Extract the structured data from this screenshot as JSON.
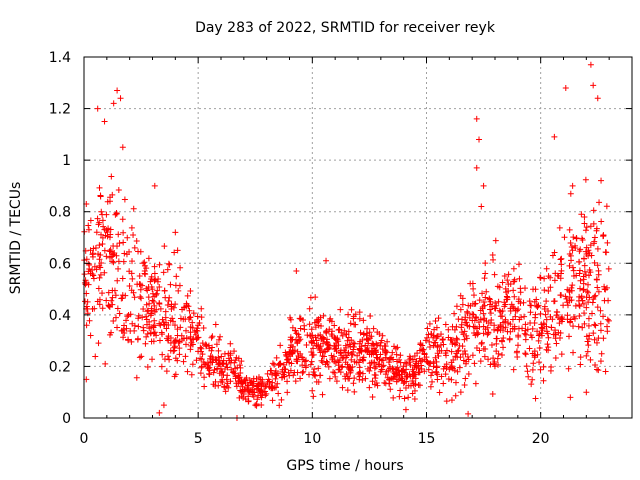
{
  "chart_data": {
    "type": "scatter",
    "title": "Day 283 of 2022, SRMTID for receiver reyk",
    "xlabel": "GPS time / hours",
    "ylabel": "SRMTID / TECUs",
    "xlim": [
      0,
      24
    ],
    "ylim": [
      0,
      1.4
    ],
    "xticks": [
      0,
      5,
      10,
      15,
      20
    ],
    "yticks": [
      0,
      0.2,
      0.4,
      0.6,
      0.8,
      1,
      1.2,
      1.4
    ],
    "xtick_labels": [
      "0",
      "5",
      "10",
      "15",
      "20"
    ],
    "ytick_labels": [
      "0",
      "0.2",
      "0.4",
      "0.6",
      "0.8",
      "1",
      "1.2",
      "1.4"
    ],
    "grid": true,
    "marker": "+",
    "color": "#ff0000",
    "series": [
      {
        "name": "SRMTID",
        "profile": {
          "x": [
            0,
            0.5,
            1,
            1.5,
            2,
            2.5,
            3,
            3.5,
            4,
            4.5,
            5,
            5.5,
            6,
            6.5,
            7,
            7.5,
            8,
            8.5,
            9,
            9.5,
            10,
            10.5,
            11,
            11.5,
            12,
            12.5,
            13,
            13.5,
            14,
            14.5,
            15,
            15.5,
            16,
            16.5,
            17,
            17.5,
            18,
            18.5,
            19,
            19.5,
            20,
            20.5,
            21,
            21.5,
            22,
            22.5,
            23
          ],
          "median": [
            0.55,
            0.58,
            0.6,
            0.58,
            0.5,
            0.45,
            0.42,
            0.38,
            0.4,
            0.35,
            0.3,
            0.22,
            0.2,
            0.18,
            0.12,
            0.1,
            0.13,
            0.17,
            0.25,
            0.27,
            0.28,
            0.27,
            0.26,
            0.24,
            0.25,
            0.26,
            0.22,
            0.18,
            0.16,
            0.18,
            0.25,
            0.27,
            0.22,
            0.28,
            0.35,
            0.38,
            0.4,
            0.42,
            0.42,
            0.35,
            0.32,
            0.4,
            0.5,
            0.55,
            0.55,
            0.5,
            0.45
          ],
          "spread": [
            0.2,
            0.2,
            0.22,
            0.25,
            0.2,
            0.18,
            0.15,
            0.15,
            0.15,
            0.12,
            0.1,
            0.08,
            0.07,
            0.06,
            0.04,
            0.04,
            0.05,
            0.07,
            0.1,
            0.1,
            0.12,
            0.1,
            0.1,
            0.1,
            0.1,
            0.1,
            0.08,
            0.07,
            0.06,
            0.07,
            0.08,
            0.1,
            0.1,
            0.12,
            0.15,
            0.15,
            0.15,
            0.15,
            0.15,
            0.15,
            0.15,
            0.15,
            0.2,
            0.2,
            0.25,
            0.25,
            0.2
          ]
        },
        "extremes": [
          [
            0.6,
            1.2
          ],
          [
            0.9,
            1.15
          ],
          [
            1.3,
            1.22
          ],
          [
            1.45,
            1.27
          ],
          [
            1.6,
            1.24
          ],
          [
            1.7,
            1.05
          ],
          [
            3.1,
            0.9
          ],
          [
            3.3,
            0.02
          ],
          [
            3.5,
            0.05
          ],
          [
            4.0,
            0.72
          ],
          [
            4.1,
            0.65
          ],
          [
            6.7,
            0.0
          ],
          [
            7.5,
            0.05
          ],
          [
            9.3,
            0.57
          ],
          [
            10.6,
            0.61
          ],
          [
            17.2,
            1.16
          ],
          [
            17.3,
            1.08
          ],
          [
            17.2,
            0.97
          ],
          [
            17.5,
            0.9
          ],
          [
            17.4,
            0.82
          ],
          [
            20.6,
            1.09
          ],
          [
            21.1,
            1.28
          ],
          [
            21.4,
            0.9
          ],
          [
            22.2,
            1.37
          ],
          [
            22.3,
            1.29
          ],
          [
            22.5,
            1.24
          ],
          [
            22.8,
            0.5
          ],
          [
            21.3,
            0.08
          ],
          [
            22.0,
            0.1
          ],
          [
            0.1,
            0.83
          ],
          [
            0.1,
            0.15
          ]
        ],
        "n_points": 1800
      }
    ]
  }
}
